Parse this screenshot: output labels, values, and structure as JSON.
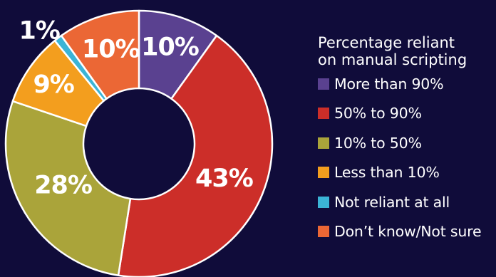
{
  "chart_data": {
    "type": "pie",
    "donut": true,
    "legend_title_lines": [
      "Percentage reliant",
      "on manual scripting"
    ],
    "legend_position": "right",
    "slices": [
      {
        "label": "More than 90%",
        "value": 10,
        "display": "10%",
        "color": "#5a4190"
      },
      {
        "label": "50% to 90%",
        "value": 43,
        "display": "43%",
        "color": "#cc2e29"
      },
      {
        "label": "10% to 50%",
        "value": 28,
        "display": "28%",
        "color": "#aaa43a"
      },
      {
        "label": "Less than 10%",
        "value": 9,
        "display": "9%",
        "color": "#f39e1e"
      },
      {
        "label": "Not reliant at all",
        "value": 1,
        "display": "1%",
        "color": "#3bb4d6"
      },
      {
        "label": "Don’t know/Not sure",
        "value": 10,
        "display": "10%",
        "color": "#eb6735"
      }
    ],
    "background_color": "#100c3a",
    "separator_color": "#ffffff"
  }
}
